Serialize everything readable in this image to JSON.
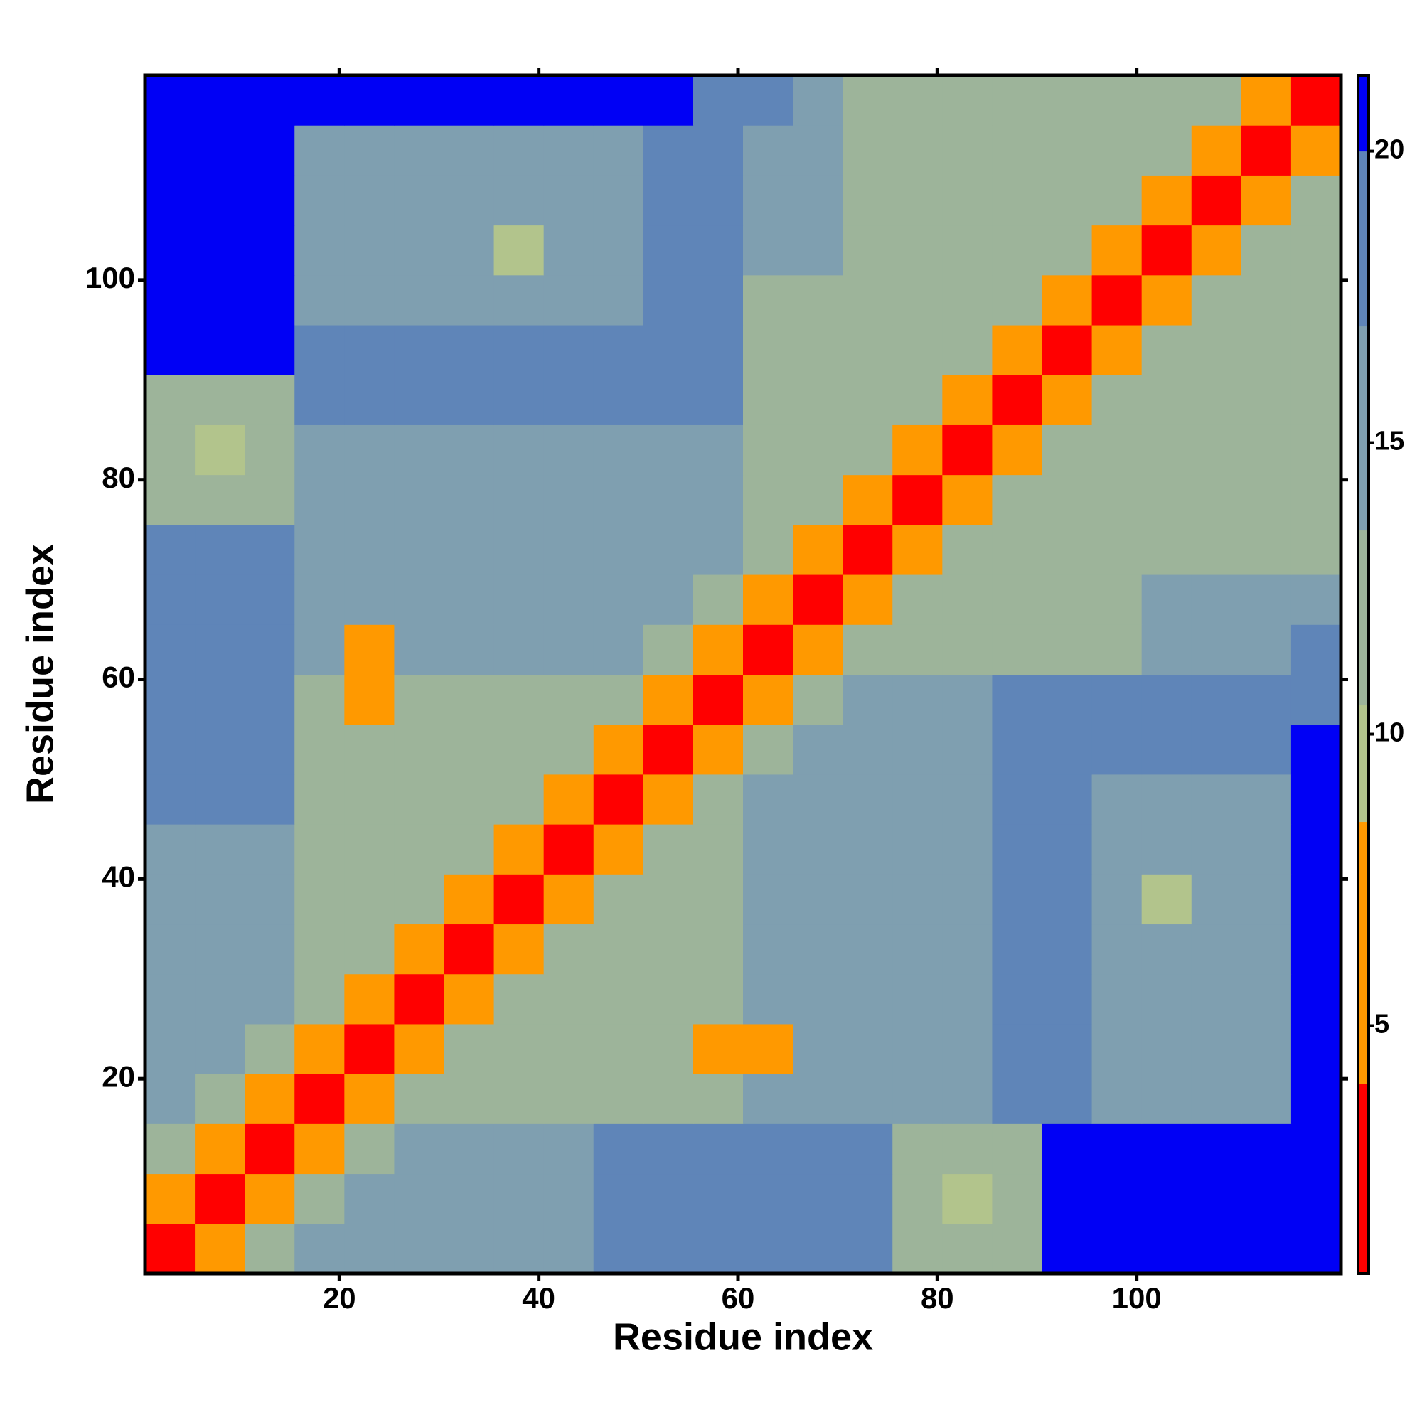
{
  "chart_data": {
    "type": "heatmap",
    "xlabel": "Residue index",
    "ylabel": "Residue index",
    "x": [
      0.5,
      5.5,
      10.5,
      15.5,
      20.5,
      25.5,
      30.5,
      35.5,
      40.5,
      45.5,
      50.5,
      55.5,
      60.5,
      65.5,
      70.5,
      75.5,
      80.5,
      85.5,
      90.5,
      95.5,
      100.5,
      105.5,
      110.5,
      115.5,
      120.5
    ],
    "y": [
      0.5,
      5.5,
      10.5,
      15.5,
      20.5,
      25.5,
      30.5,
      35.5,
      40.5,
      45.5,
      50.5,
      55.5,
      60.5,
      65.5,
      70.5,
      75.5,
      80.5,
      85.5,
      90.5,
      95.5,
      100.5,
      105.5,
      110.5,
      115.5,
      120.5
    ],
    "z": [
      [
        3,
        7,
        11,
        14,
        14,
        14,
        14,
        14,
        14,
        18,
        18,
        18,
        20,
        20,
        20,
        13,
        13,
        13,
        21,
        21,
        21,
        21,
        21,
        21
      ],
      [
        7,
        3,
        7,
        11,
        14,
        14,
        14,
        14,
        14,
        18,
        18,
        18,
        20,
        20,
        20,
        13,
        9,
        13,
        21,
        21,
        21,
        21,
        21,
        21
      ],
      [
        11,
        7,
        3,
        7,
        11,
        14,
        14,
        14,
        14,
        18,
        18,
        18,
        20,
        20,
        20,
        13,
        13,
        13,
        21,
        21,
        21,
        21,
        21,
        21
      ],
      [
        14,
        11,
        7,
        3,
        7,
        11,
        13,
        13,
        13,
        13,
        13,
        13,
        14,
        14,
        14,
        14,
        14,
        19,
        19,
        15,
        15,
        15,
        15,
        21
      ],
      [
        14,
        14,
        11,
        7,
        3,
        7,
        11,
        13,
        13,
        13,
        13,
        8,
        8,
        14,
        14,
        14,
        14,
        19,
        19,
        15,
        15,
        15,
        15,
        21
      ],
      [
        14,
        14,
        14,
        11,
        7,
        3,
        7,
        11,
        13,
        13,
        13,
        13,
        14,
        14,
        14,
        14,
        14,
        19,
        19,
        15,
        15,
        15,
        15,
        21
      ],
      [
        14,
        14,
        14,
        13,
        11,
        7,
        3,
        7,
        11,
        13,
        13,
        13,
        14,
        14,
        14,
        14,
        14,
        19,
        19,
        15,
        15,
        15,
        15,
        21
      ],
      [
        14,
        14,
        14,
        13,
        13,
        11,
        7,
        3,
        7,
        11,
        13,
        13,
        14,
        14,
        14,
        14,
        14,
        19,
        19,
        15,
        9,
        15,
        15,
        21
      ],
      [
        14,
        14,
        14,
        13,
        13,
        13,
        11,
        7,
        3,
        7,
        11,
        13,
        14,
        14,
        14,
        14,
        14,
        19,
        19,
        15,
        15,
        15,
        15,
        21
      ],
      [
        18,
        18,
        18,
        13,
        13,
        13,
        13,
        11,
        7,
        3,
        7,
        11,
        17,
        17,
        17,
        17,
        17,
        19,
        19,
        15,
        15,
        15,
        15,
        21
      ],
      [
        18,
        18,
        18,
        13,
        13,
        13,
        13,
        13,
        11,
        7,
        3,
        7,
        11,
        17,
        17,
        17,
        17,
        19,
        19,
        20,
        20,
        20,
        20,
        21
      ],
      [
        18,
        18,
        18,
        13,
        8,
        13,
        13,
        13,
        13,
        11,
        7,
        3,
        7,
        11,
        16,
        16,
        16,
        20,
        20,
        20,
        20,
        20,
        20,
        20
      ],
      [
        20,
        20,
        20,
        14,
        8,
        14,
        14,
        14,
        14,
        17,
        11,
        7,
        3,
        7,
        11,
        13,
        13,
        13,
        13,
        13,
        17,
        17,
        17,
        20
      ],
      [
        20,
        20,
        20,
        14,
        14,
        14,
        14,
        14,
        14,
        17,
        17,
        11,
        7,
        3,
        7,
        11,
        13,
        13,
        13,
        13,
        17,
        17,
        17,
        17
      ],
      [
        20,
        20,
        20,
        14,
        14,
        14,
        14,
        14,
        14,
        17,
        17,
        16,
        11,
        7,
        3,
        7,
        11,
        13,
        13,
        13,
        13,
        13,
        13,
        13
      ],
      [
        13,
        13,
        13,
        14,
        14,
        14,
        14,
        14,
        14,
        17,
        17,
        16,
        13,
        11,
        7,
        3,
        7,
        11,
        13,
        13,
        13,
        13,
        13,
        13
      ],
      [
        13,
        9,
        13,
        14,
        14,
        14,
        14,
        14,
        14,
        17,
        17,
        16,
        13,
        13,
        11,
        7,
        3,
        7,
        11,
        13,
        13,
        13,
        13,
        13
      ],
      [
        13,
        13,
        13,
        19,
        19,
        19,
        19,
        19,
        19,
        19,
        19,
        20,
        13,
        13,
        13,
        11,
        7,
        3,
        7,
        11,
        13,
        13,
        13,
        13
      ],
      [
        21,
        21,
        21,
        19,
        19,
        19,
        19,
        19,
        19,
        19,
        19,
        20,
        13,
        13,
        13,
        13,
        11,
        7,
        3,
        7,
        11,
        13,
        13,
        13
      ],
      [
        21,
        21,
        21,
        15,
        15,
        15,
        15,
        15,
        15,
        15,
        20,
        20,
        13,
        13,
        13,
        13,
        13,
        11,
        7,
        3,
        7,
        11,
        13,
        13
      ],
      [
        21,
        21,
        21,
        15,
        15,
        15,
        15,
        9,
        15,
        15,
        20,
        20,
        17,
        17,
        13,
        13,
        13,
        13,
        11,
        7,
        3,
        7,
        11,
        13
      ],
      [
        21,
        21,
        21,
        15,
        15,
        15,
        15,
        15,
        15,
        15,
        20,
        20,
        17,
        17,
        13,
        13,
        13,
        13,
        13,
        11,
        7,
        3,
        7,
        11
      ],
      [
        21,
        21,
        21,
        15,
        15,
        15,
        15,
        15,
        15,
        15,
        20,
        20,
        17,
        17,
        13,
        13,
        13,
        13,
        13,
        13,
        11,
        7,
        3,
        7
      ],
      [
        21,
        21,
        21,
        21,
        21,
        21,
        21,
        21,
        21,
        21,
        21,
        20,
        20,
        17,
        13,
        13,
        13,
        13,
        13,
        13,
        13,
        11,
        7,
        3
      ]
    ],
    "xlim": [
      0.5,
      120.5
    ],
    "ylim": [
      0.5,
      120.5
    ],
    "xticks": [
      20,
      40,
      60,
      80,
      100
    ],
    "yticks": [
      20,
      40,
      60,
      80,
      100
    ],
    "color_bounds": [
      0.75,
      4,
      8.5,
      10.5,
      13.5,
      17,
      20,
      21.3
    ],
    "colors": [
      "#ff0000",
      "#ff9900",
      "#b2c48c",
      "#9db49a",
      "#7f9fb0",
      "#5f85b8",
      "#0000f5"
    ],
    "clim": [
      0.75,
      21.3
    ],
    "cticks": [
      5,
      10,
      15,
      20
    ]
  }
}
